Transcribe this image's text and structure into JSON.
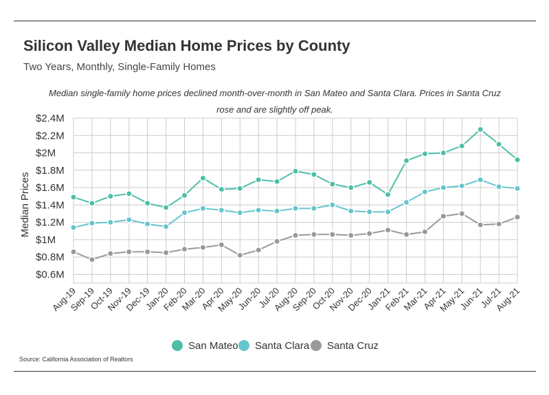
{
  "header": {
    "title": "Silicon Valley Median Home Prices by County",
    "subtitle": "Two Years, Monthly, Single-Family Homes"
  },
  "note": "Median single-family home prices declined month-over-month in San Mateo and Santa Clara. Prices in Santa Cruz rose and are slightly off peak.",
  "source": "Source:  California Association of Realtors",
  "chart_data": {
    "type": "line",
    "ylabel": "Median Prices",
    "xlabel": "",
    "ylim": [
      0.5,
      2.4
    ],
    "yticks": [
      {
        "value": 0.6,
        "label": "$0.6M"
      },
      {
        "value": 0.8,
        "label": "$0.8M"
      },
      {
        "value": 1.0,
        "label": "$1M"
      },
      {
        "value": 1.2,
        "label": "$1.2M"
      },
      {
        "value": 1.4,
        "label": "$1.4M"
      },
      {
        "value": 1.6,
        "label": "$1.6M"
      },
      {
        "value": 1.8,
        "label": "$1.8M"
      },
      {
        "value": 2.0,
        "label": "$2M"
      },
      {
        "value": 2.2,
        "label": "$2.2M"
      },
      {
        "value": 2.4,
        "label": "$2.4M"
      }
    ],
    "grid": true,
    "legend_position": "bottom",
    "categories": [
      "Aug-19",
      "Sep-19",
      "Oct-19",
      "Nov-19",
      "Dec-19",
      "Jan-20",
      "Feb-20",
      "Mar-20",
      "Apr-20",
      "May-20",
      "Jun-20",
      "Jul-20",
      "Aug-20",
      "Sep-20",
      "Oct-20",
      "Nov-20",
      "Dec-20",
      "Jan-21",
      "Feb-21",
      "Mar-21",
      "Apr-21",
      "May-21",
      "Jun-21",
      "Jul-21",
      "Aug-21"
    ],
    "series": [
      {
        "name": "San Mateo",
        "color": "#4dbfa8",
        "values": [
          1.49,
          1.42,
          1.5,
          1.53,
          1.42,
          1.37,
          1.51,
          1.71,
          1.58,
          1.59,
          1.69,
          1.67,
          1.79,
          1.75,
          1.64,
          1.6,
          1.66,
          1.52,
          1.91,
          1.99,
          2.0,
          2.08,
          2.27,
          2.1,
          1.92
        ]
      },
      {
        "name": "Santa Clara",
        "color": "#66c5cc",
        "values": [
          1.14,
          1.19,
          1.2,
          1.23,
          1.18,
          1.15,
          1.31,
          1.36,
          1.34,
          1.31,
          1.34,
          1.33,
          1.36,
          1.36,
          1.4,
          1.33,
          1.32,
          1.32,
          1.43,
          1.55,
          1.6,
          1.62,
          1.69,
          1.61,
          1.59
        ]
      },
      {
        "name": "Santa Cruz",
        "color": "#999999",
        "values": [
          0.86,
          0.77,
          0.84,
          0.86,
          0.86,
          0.85,
          0.89,
          0.91,
          0.94,
          0.82,
          0.88,
          0.98,
          1.05,
          1.06,
          1.06,
          1.05,
          1.07,
          1.11,
          1.06,
          1.09,
          1.27,
          1.3,
          1.17,
          1.18,
          1.26
        ]
      }
    ]
  }
}
